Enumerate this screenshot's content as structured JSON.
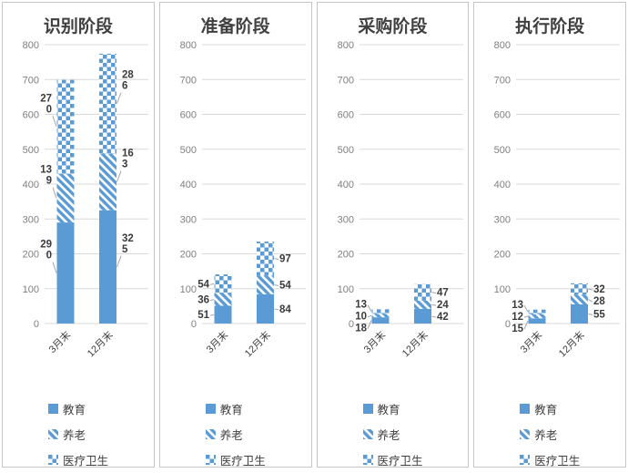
{
  "style": {
    "bar_color": "#5B9BD5",
    "gridline_color": "#D9D9D9",
    "axis_text_color": "#7F7F7F",
    "category_text_color": "#404040",
    "data_label_color": "#3B3B3B",
    "title_color": "#404040",
    "leader_line_color": "#A6A6A6",
    "panel_border_color": "#C6C6C6",
    "background": "#FFFFFF"
  },
  "chart_data": [
    {
      "type": "bar",
      "stacked": true,
      "title": "识别阶段",
      "categories": [
        "3月末",
        "12月末"
      ],
      "series": [
        {
          "name": "教育",
          "fill": "solid",
          "values": [
            290,
            325
          ]
        },
        {
          "name": "养老",
          "fill": "diagonal-stripe",
          "values": [
            139,
            163
          ]
        },
        {
          "name": "医疗卫生",
          "fill": "checker",
          "values": [
            270,
            286
          ]
        }
      ],
      "ylim": [
        0,
        800
      ],
      "ytick_step": 100,
      "grid": true,
      "legend_position": "bottom",
      "label_sides": [
        "left",
        "right"
      ]
    },
    {
      "type": "bar",
      "stacked": true,
      "title": "准备阶段",
      "categories": [
        "3月末",
        "12月末"
      ],
      "series": [
        {
          "name": "教育",
          "fill": "solid",
          "values": [
            51,
            84
          ]
        },
        {
          "name": "养老",
          "fill": "diagonal-stripe",
          "values": [
            36,
            54
          ]
        },
        {
          "name": "医疗卫生",
          "fill": "checker",
          "values": [
            54,
            97
          ]
        }
      ],
      "ylim": [
        0,
        800
      ],
      "ytick_step": 100,
      "grid": true,
      "legend_position": "bottom",
      "label_sides": [
        "left",
        "right"
      ]
    },
    {
      "type": "bar",
      "stacked": true,
      "title": "采购阶段",
      "categories": [
        "3月末",
        "12月末"
      ],
      "series": [
        {
          "name": "教育",
          "fill": "solid",
          "values": [
            18,
            42
          ]
        },
        {
          "name": "养老",
          "fill": "diagonal-stripe",
          "values": [
            10,
            24
          ]
        },
        {
          "name": "医疗卫生",
          "fill": "checker",
          "values": [
            13,
            47
          ]
        }
      ],
      "ylim": [
        0,
        800
      ],
      "ytick_step": 100,
      "grid": true,
      "legend_position": "bottom",
      "label_sides": [
        "left",
        "right"
      ]
    },
    {
      "type": "bar",
      "stacked": true,
      "title": "执行阶段",
      "categories": [
        "3月末",
        "12月末"
      ],
      "series": [
        {
          "name": "教育",
          "fill": "solid",
          "values": [
            15,
            55
          ]
        },
        {
          "name": "养老",
          "fill": "diagonal-stripe",
          "values": [
            12,
            28
          ]
        },
        {
          "name": "医疗卫生",
          "fill": "checker",
          "values": [
            13,
            32
          ]
        }
      ],
      "ylim": [
        0,
        800
      ],
      "ytick_step": 100,
      "grid": true,
      "legend_position": "bottom",
      "label_sides": [
        "left",
        "right"
      ]
    }
  ]
}
